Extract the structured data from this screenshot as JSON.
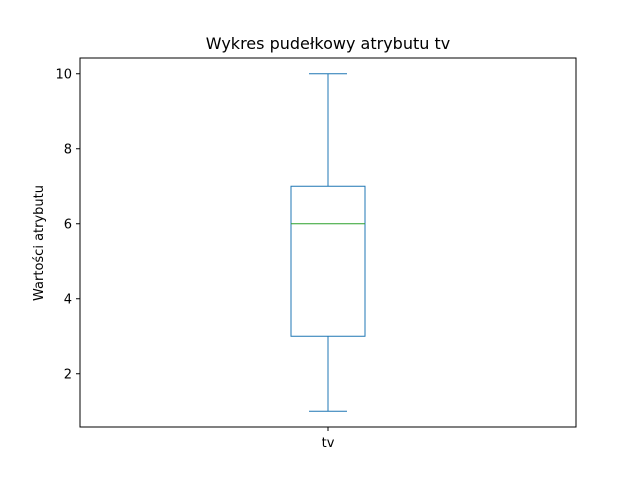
{
  "chart_data": {
    "type": "box",
    "title": "Wykres pudełkowy atrybutu tv",
    "xlabel": "",
    "ylabel": "Wartości atrybutu",
    "ylim": [
      0.58,
      10.42
    ],
    "yticks": [
      2,
      4,
      6,
      8,
      10
    ],
    "categories": [
      "tv"
    ],
    "boxes": [
      {
        "name": "tv",
        "whisker_low": 1,
        "q1": 3,
        "median": 6,
        "q3": 7,
        "whisker_high": 10
      }
    ],
    "grid": false,
    "colors": {
      "box": "#1f77b4",
      "median": "#2ca02c",
      "axes": "#000000"
    }
  }
}
